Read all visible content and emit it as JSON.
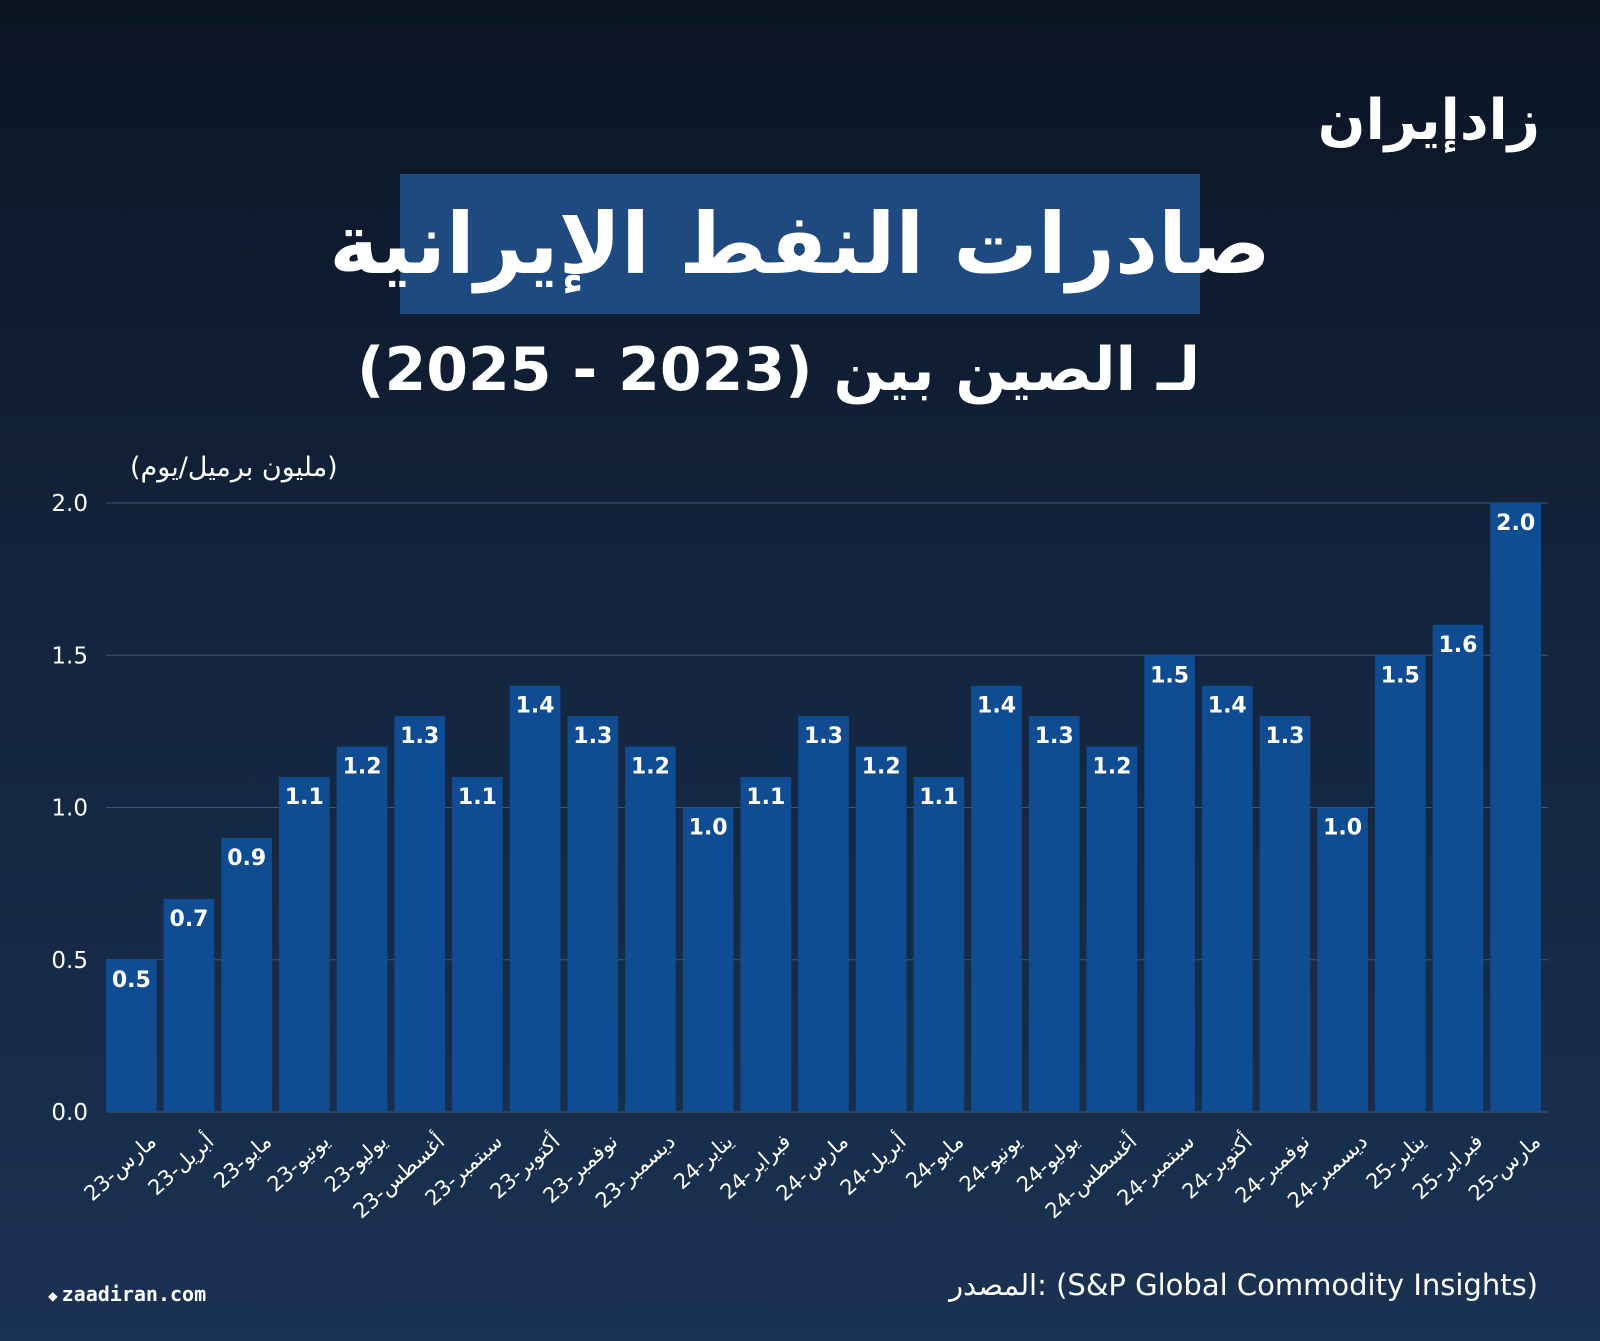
{
  "logo": "زادإيران",
  "footer": {
    "site": "zaadiran.com",
    "source": "المصدر: (S&P Global Commodity Insights)"
  },
  "chart_data": {
    "type": "bar",
    "title": "صادرات النفط الإيرانية",
    "subtitle": "لـ الصين بين (2023 - 2025)",
    "ylabel": "(مليون برميل/يوم)",
    "xlabel": "",
    "ylim": [
      0,
      2.0
    ],
    "yticks": [
      "0.0",
      "0.5",
      "1.0",
      "1.5",
      "2.0"
    ],
    "grid": true,
    "bar_color": "#0f4c91",
    "categories": [
      "مارس-23",
      "أبريل-23",
      "مايو-23",
      "يونيو-23",
      "يوليو-23",
      "أغسطس-23",
      "سبتمبر-23",
      "أكتوبر-23",
      "نوفمبر-23",
      "ديسمبر-23",
      "يناير-24",
      "فبراير-24",
      "مارس-24",
      "أبريل-24",
      "مايو-24",
      "يونيو-24",
      "يوليو-24",
      "أغسطس-24",
      "سبتمبر-24",
      "أكتوبر-24",
      "نوفمبر-24",
      "ديسمبر-24",
      "يناير-25",
      "فبراير-25",
      "مارس-25"
    ],
    "values": [
      0.5,
      0.7,
      0.9,
      1.1,
      1.2,
      1.3,
      1.1,
      1.4,
      1.3,
      1.2,
      1.0,
      1.1,
      1.3,
      1.2,
      1.1,
      1.4,
      1.3,
      1.2,
      1.5,
      1.4,
      1.3,
      1.0,
      1.5,
      1.6,
      2.0
    ],
    "data_labels": [
      "0.5",
      "0.7",
      "0.9",
      "1.1",
      "1.2",
      "1.3",
      "1.1",
      "1.4",
      "1.3",
      "1.2",
      "1.0",
      "1.1",
      "1.3",
      "1.2",
      "1.1",
      "1.4",
      "1.3",
      "1.2",
      "1.5",
      "1.4",
      "1.3",
      "1.0",
      "1.5",
      "1.6",
      "2.0"
    ]
  }
}
